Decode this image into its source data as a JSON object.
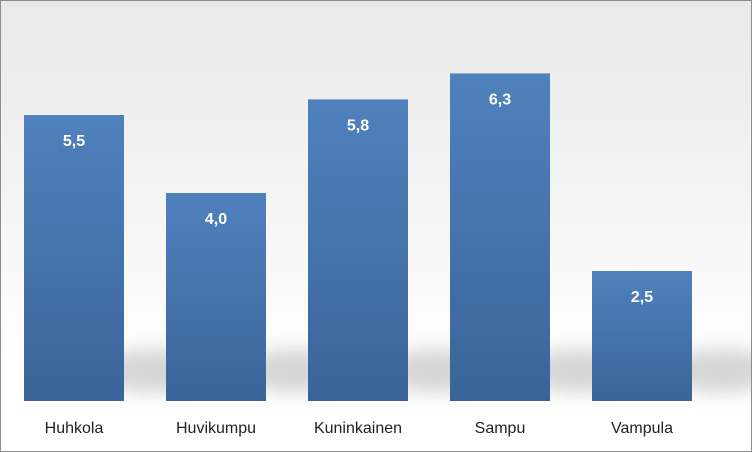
{
  "chart_data": {
    "type": "bar",
    "categories": [
      "Huhkola",
      "Huvikumpu",
      "Kuninkainen",
      "Sampu",
      "Vampula"
    ],
    "values": [
      5.5,
      4.0,
      5.8,
      6.3,
      2.5
    ],
    "value_labels": [
      "5,5",
      "4,0",
      "5,8",
      "6,3",
      "2,5"
    ],
    "title": "",
    "xlabel": "",
    "ylabel": "",
    "ylim": [
      0,
      7.5
    ],
    "grid": false,
    "legend": "none",
    "colors": {
      "bar_top": "#4f81bd",
      "bar_bottom": "#3a6499",
      "label": "#ffffff"
    }
  }
}
